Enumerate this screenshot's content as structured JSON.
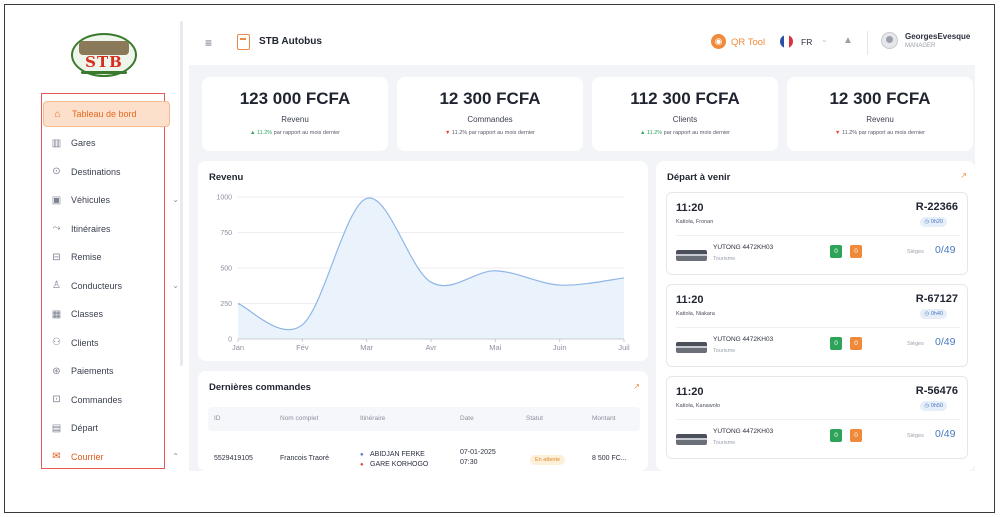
{
  "logo": {
    "text": "STB"
  },
  "sidebar": {
    "items": [
      {
        "label": "Tableau de bord",
        "icon": "home-icon",
        "active": true
      },
      {
        "label": "Gares",
        "icon": "station-icon"
      },
      {
        "label": "Destinations",
        "icon": "destination-icon"
      },
      {
        "label": "Véhicules",
        "icon": "vehicle-icon",
        "expandable": true
      },
      {
        "label": "Itinéraires",
        "icon": "route-icon"
      },
      {
        "label": "Remise",
        "icon": "discount-icon"
      },
      {
        "label": "Conducteurs",
        "icon": "driver-icon",
        "expandable": true
      },
      {
        "label": "Classes",
        "icon": "class-icon"
      },
      {
        "label": "Clients",
        "icon": "clients-icon"
      },
      {
        "label": "Paiements",
        "icon": "payment-icon"
      },
      {
        "label": "Commandes",
        "icon": "orders-icon"
      },
      {
        "label": "Départ",
        "icon": "departure-icon"
      },
      {
        "label": "Courrier",
        "icon": "mail-icon",
        "expandable": true
      }
    ]
  },
  "header": {
    "title": "STB Autobus",
    "qr_label": "QR Tool",
    "language": "FR",
    "user_name": "GeorgesEvesque",
    "user_role": "MANAGER"
  },
  "stats": [
    {
      "value": "123 000 FCFA",
      "label": "Revenu",
      "pct": "11.2%",
      "direction": "up",
      "note": "par rapport au mois dernier"
    },
    {
      "value": "12 300 FCFA",
      "label": "Commandes",
      "pct": "11.2%",
      "direction": "down",
      "note": "par rapport au mois dernier"
    },
    {
      "value": "112 300 FCFA",
      "label": "Clients",
      "pct": "11.2%",
      "direction": "up",
      "note": "par rapport au mois dernier"
    },
    {
      "value": "12 300 FCFA",
      "label": "Revenu",
      "pct": "11.2%",
      "direction": "down",
      "note": "par rapport au mois dernier"
    }
  ],
  "revenue_card": {
    "title": "Revenu"
  },
  "chart_data": {
    "type": "area",
    "title": "Revenu",
    "categories": [
      "Jan",
      "Fév",
      "Mar",
      "Avr",
      "Mai",
      "Juin",
      "Juil"
    ],
    "values": [
      250,
      100,
      990,
      400,
      480,
      380,
      430
    ],
    "ylim": [
      0,
      1000
    ],
    "yticks": [
      0,
      250,
      500,
      750,
      1000
    ],
    "grid": true,
    "color": "#8fb6e6",
    "fill": "#eaf2fc"
  },
  "orders": {
    "title": "Dernières commandes",
    "columns": [
      "ID",
      "Nom complet",
      "Itinéraire",
      "Date",
      "Statut",
      "Montant"
    ],
    "rows": [
      {
        "id": "5529419105",
        "name": "Francois Traoré",
        "from": "ABIDJAN FERKE",
        "to": "GARE KORHOGO",
        "date": "07-01-2025",
        "time": "07:30",
        "status": "En attente",
        "amount": "8 500 FC..."
      }
    ]
  },
  "departures": {
    "title": "Départ à venir",
    "items": [
      {
        "time": "11:20",
        "route": "Katiola, Fronan",
        "code": "R-22366",
        "duration": "0h20",
        "bus": "YUTONG 4472KH03",
        "bus_type": "Tourisme",
        "green": "0",
        "orange": "0",
        "seats_label": "Sièges",
        "seats": "0/49"
      },
      {
        "time": "11:20",
        "route": "Katiola, Niakara",
        "code": "R-67127",
        "duration": "0h40",
        "bus": "YUTONG 4472KH03",
        "bus_type": "Tourisme",
        "green": "0",
        "orange": "0",
        "seats_label": "Sièges",
        "seats": "0/49"
      },
      {
        "time": "11:20",
        "route": "Katiola, Kanawolo",
        "code": "R-56476",
        "duration": "0h50",
        "bus": "YUTONG 4472KH03",
        "bus_type": "Tourisme",
        "green": "0",
        "orange": "0",
        "seats_label": "Sièges",
        "seats": "0/49"
      }
    ]
  },
  "colors": {
    "accent": "#f08a3a",
    "active_bg": "#fde0cc",
    "up": "#2ea35a",
    "down": "#e3453a",
    "link_blue": "#4a78c2"
  }
}
